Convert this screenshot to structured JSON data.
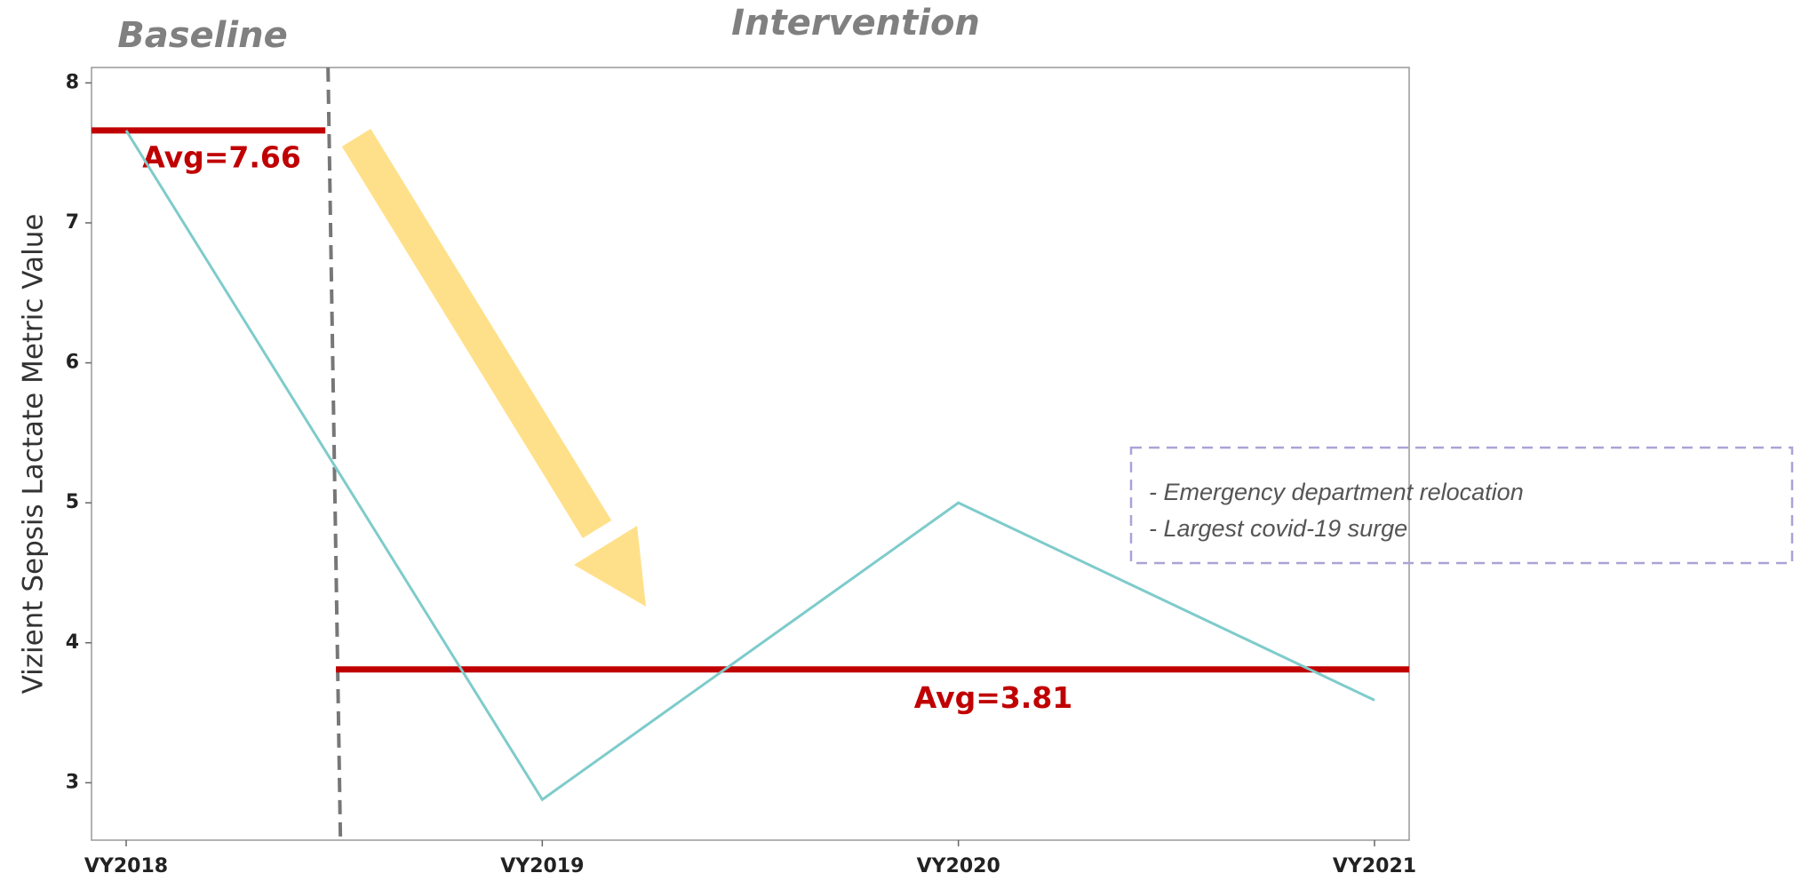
{
  "chart_data": {
    "type": "line",
    "y_label": "Vizient Sepsis Lactate Metric Value",
    "categories": [
      "VY2018",
      "VY2019",
      "VY2020",
      "VY2021"
    ],
    "series": [
      {
        "name": "Vizient Sepsis Lactate Metric Value",
        "color": "#7fcbcb",
        "values": [
          7.66,
          2.88,
          5.0,
          3.59
        ]
      }
    ],
    "ylim": [
      2.59,
      8.11
    ],
    "yticks": [
      3,
      4,
      5,
      6,
      7,
      8
    ],
    "grid": false,
    "phases": [
      {
        "name": "Baseline",
        "average": 7.66,
        "average_label": "Avg=7.66"
      },
      {
        "name": "Intervention",
        "average": 3.81,
        "average_label": "Avg=3.81"
      }
    ],
    "average_color": "#c00000",
    "notes": [
      "- Emergency department relocation",
      "- Largest covid-19 surge"
    ]
  }
}
